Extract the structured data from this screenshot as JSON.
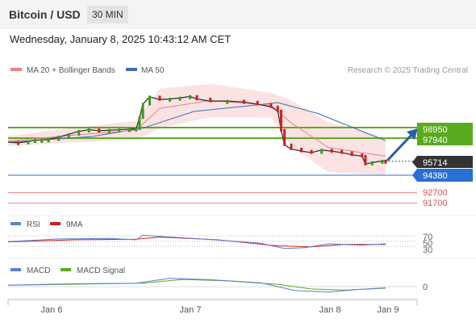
{
  "header": {
    "title": "Bitcoin / USD",
    "timeframe": "30 MIN"
  },
  "datetime": "Wednesday, January 8, 2025 10:43:12 AM CET",
  "legend": {
    "ma20": "MA 20 + Bollinger Bands",
    "ma50": "MA 50",
    "credit": "Research © 2025 Trading Central"
  },
  "colors": {
    "ma20": "#f08080",
    "ma50": "#3c6eb4",
    "resistance": "#5aaa1e",
    "support": "#2a6fd1",
    "level_red": "#e05050",
    "price": "#333333",
    "rsi": "#5b7fd6",
    "rsi_ma": "#d21e1e",
    "macd": "#5b7fd6",
    "macd_signal": "#5aaa1e",
    "arrow": "#2a5ea8",
    "band": "#fadcdc"
  },
  "levels": {
    "r1": "98950",
    "r2": "97940",
    "last": "95714",
    "s1": "94380",
    "s2": "92700",
    "s3": "91700"
  },
  "rsi_panel": {
    "label": "RSI",
    "ma_label": "9MA",
    "ticks": [
      "70",
      "50",
      "30"
    ]
  },
  "macd_panel": {
    "label": "MACD",
    "signal_label": "MACD Signal",
    "tick": "0"
  },
  "x_ticks": [
    "Jan 6",
    "Jan 7",
    "Jan 8",
    "Jan 9"
  ],
  "chart_data": {
    "type": "line",
    "title": "Bitcoin / USD",
    "timeframe": "30 MIN",
    "x_ticks": [
      "Jan 6",
      "Jan 7",
      "Jan 8",
      "Jan 9"
    ],
    "price_series": [
      [
        0,
        97550
      ],
      [
        3,
        97500
      ],
      [
        6,
        97620
      ],
      [
        8,
        97750
      ],
      [
        10,
        97760
      ],
      [
        12,
        97800
      ],
      [
        15,
        98050
      ],
      [
        18,
        98300
      ],
      [
        21,
        98600
      ],
      [
        24,
        98750
      ],
      [
        27,
        98650
      ],
      [
        30,
        98700
      ],
      [
        33,
        98750
      ],
      [
        36,
        98800
      ],
      [
        38,
        98850
      ],
      [
        39,
        99900
      ],
      [
        40,
        101200
      ],
      [
        42,
        101900
      ],
      [
        45,
        101650
      ],
      [
        48,
        101700
      ],
      [
        51,
        101800
      ],
      [
        54,
        101950
      ],
      [
        56,
        101700
      ],
      [
        60,
        101500
      ],
      [
        65,
        101500
      ],
      [
        70,
        101400
      ],
      [
        74,
        101200
      ],
      [
        78,
        100950
      ],
      [
        80,
        100550
      ],
      [
        81,
        98700
      ],
      [
        82,
        97300
      ],
      [
        84,
        96900
      ],
      [
        87,
        96700
      ],
      [
        90,
        96550
      ],
      [
        93,
        96800
      ],
      [
        96,
        96700
      ],
      [
        99,
        96550
      ],
      [
        102,
        96350
      ],
      [
        105,
        96200
      ],
      [
        106,
        95450
      ],
      [
        108,
        95600
      ],
      [
        111,
        95750
      ],
      [
        112,
        95714
      ]
    ],
    "ma20_series": [
      [
        0,
        97650
      ],
      [
        20,
        98250
      ],
      [
        38,
        98700
      ],
      [
        45,
        100800
      ],
      [
        60,
        101550
      ],
      [
        78,
        101100
      ],
      [
        84,
        99400
      ],
      [
        95,
        97050
      ],
      [
        112,
        96200
      ]
    ],
    "ma50_series": [
      [
        0,
        97550
      ],
      [
        25,
        98100
      ],
      [
        40,
        98900
      ],
      [
        55,
        100500
      ],
      [
        70,
        101000
      ],
      [
        80,
        101350
      ],
      [
        92,
        100300
      ],
      [
        105,
        98600
      ],
      [
        112,
        97700
      ]
    ],
    "levels": {
      "resistance": [
        98950,
        97940
      ],
      "last": 95714,
      "support": [
        94380,
        92700,
        91700
      ]
    },
    "rsi": {
      "ticks": [
        70,
        50,
        30
      ],
      "rsi_series": [
        [
          0,
          48
        ],
        [
          15,
          58
        ],
        [
          30,
          60
        ],
        [
          38,
          55
        ],
        [
          40,
          72
        ],
        [
          45,
          68
        ],
        [
          60,
          56
        ],
        [
          75,
          42
        ],
        [
          82,
          22
        ],
        [
          88,
          25
        ],
        [
          95,
          40
        ],
        [
          105,
          35
        ],
        [
          112,
          40
        ]
      ],
      "ma_series": [
        [
          0,
          47
        ],
        [
          20,
          55
        ],
        [
          38,
          57
        ],
        [
          45,
          65
        ],
        [
          62,
          55
        ],
        [
          80,
          32
        ],
        [
          90,
          28
        ],
        [
          100,
          38
        ],
        [
          112,
          37
        ]
      ]
    },
    "macd": {
      "tick": 0,
      "macd_series": [
        [
          0,
          200
        ],
        [
          20,
          380
        ],
        [
          38,
          450
        ],
        [
          48,
          1100
        ],
        [
          60,
          900
        ],
        [
          75,
          500
        ],
        [
          85,
          -500
        ],
        [
          95,
          -700
        ],
        [
          103,
          -400
        ],
        [
          112,
          -150
        ]
      ],
      "signal_series": [
        [
          0,
          180
        ],
        [
          20,
          320
        ],
        [
          40,
          460
        ],
        [
          52,
          950
        ],
        [
          65,
          750
        ],
        [
          80,
          300
        ],
        [
          90,
          -300
        ],
        [
          100,
          -450
        ],
        [
          112,
          -200
        ]
      ]
    }
  }
}
